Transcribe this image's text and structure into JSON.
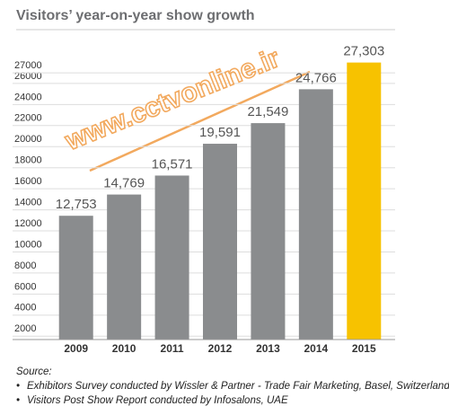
{
  "chart_data": {
    "type": "bar",
    "title": "Visitors’ year-on-year show growth",
    "categories": [
      "2009",
      "2010",
      "2011",
      "2012",
      "2013",
      "2014",
      "2015"
    ],
    "values": [
      12753,
      14769,
      16571,
      19591,
      21549,
      24766,
      27303
    ],
    "value_labels": [
      "12,753",
      "14,769",
      "16,571",
      "19,591",
      "21,549",
      "24,766",
      "27,303"
    ],
    "colors": [
      "#8a8c8e",
      "#8a8c8e",
      "#8a8c8e",
      "#8a8c8e",
      "#8a8c8e",
      "#8a8c8e",
      "#f7c200"
    ],
    "ylim": [
      1000,
      30000
    ],
    "yticks": [
      2000,
      4000,
      6000,
      8000,
      10000,
      12000,
      14000,
      16000,
      18000,
      20000,
      22000,
      24000,
      26000,
      27000
    ],
    "grid": true,
    "watermark": "www.cctvonline.ir",
    "source": {
      "heading": "Source:",
      "items": [
        "Exhibitors Survey conducted by Wissler & Partner - Trade Fair Marketing, Basel, Switzerland",
        "Visitors Post Show Report conducted by Infosalons, UAE"
      ]
    }
  }
}
